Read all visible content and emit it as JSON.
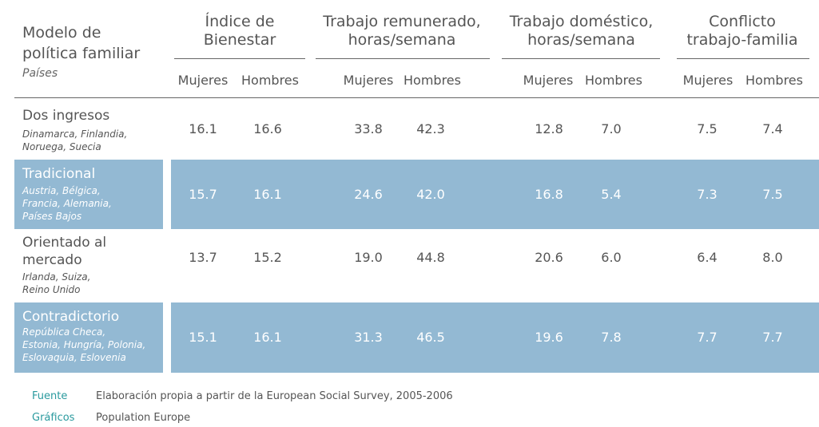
{
  "chart_data": {
    "type": "table",
    "row_header": {
      "title_line1": "Modelo de",
      "title_line2": "política familiar",
      "subtitle": "Países"
    },
    "groups": [
      {
        "label_line1": "Índice de",
        "label_line2": "Bienestar"
      },
      {
        "label_line1": "Trabajo remunerado,",
        "label_line2": "horas/semana"
      },
      {
        "label_line1": "Trabajo doméstico,",
        "label_line2": "horas/semana"
      },
      {
        "label_line1": "Conflicto",
        "label_line2": "trabajo-familia"
      }
    ],
    "subcolumns": [
      "Mujeres",
      "Hombres"
    ],
    "rows": [
      {
        "label_lines": [
          "Dos ingresos"
        ],
        "countries_lines": [
          "Dinamarca, Finlandia,",
          "Noruega, Suecia"
        ],
        "values": [
          "16.1",
          "16.6",
          "33.8",
          "42.3",
          "12.8",
          "7.0",
          "7.5",
          "7.4"
        ],
        "shaded": false
      },
      {
        "label_lines": [
          "Tradicional"
        ],
        "countries_lines": [
          "Austria, Bélgica,",
          "Francia, Alemania,",
          "Países Bajos"
        ],
        "values": [
          "15.7",
          "16.1",
          "24.6",
          "42.0",
          "16.8",
          "5.4",
          "7.3",
          "7.5"
        ],
        "shaded": true
      },
      {
        "label_lines": [
          "Orientado al",
          "mercado"
        ],
        "countries_lines": [
          "Irlanda, Suiza,",
          "Reino Unido"
        ],
        "values": [
          "13.7",
          "15.2",
          "19.0",
          "44.8",
          "20.6",
          "6.0",
          "6.4",
          "8.0"
        ],
        "shaded": false
      },
      {
        "label_lines": [
          "Contradictorio"
        ],
        "countries_lines": [
          "República Checa,",
          "Estonia, Hungría, Polonia,",
          "Eslovaquia, Eslovenia"
        ],
        "values": [
          "15.1",
          "16.1",
          "31.3",
          "46.5",
          "19.6",
          "7.8",
          "7.7",
          "7.7"
        ],
        "shaded": true
      }
    ],
    "band_color": "#93b9d3"
  },
  "footer": {
    "source_label": "Fuente",
    "source_text": "Elaboración propia a partir de la European Social Survey, 2005-2006",
    "graphics_label": "Gráficos",
    "graphics_text": "Population Europe"
  }
}
